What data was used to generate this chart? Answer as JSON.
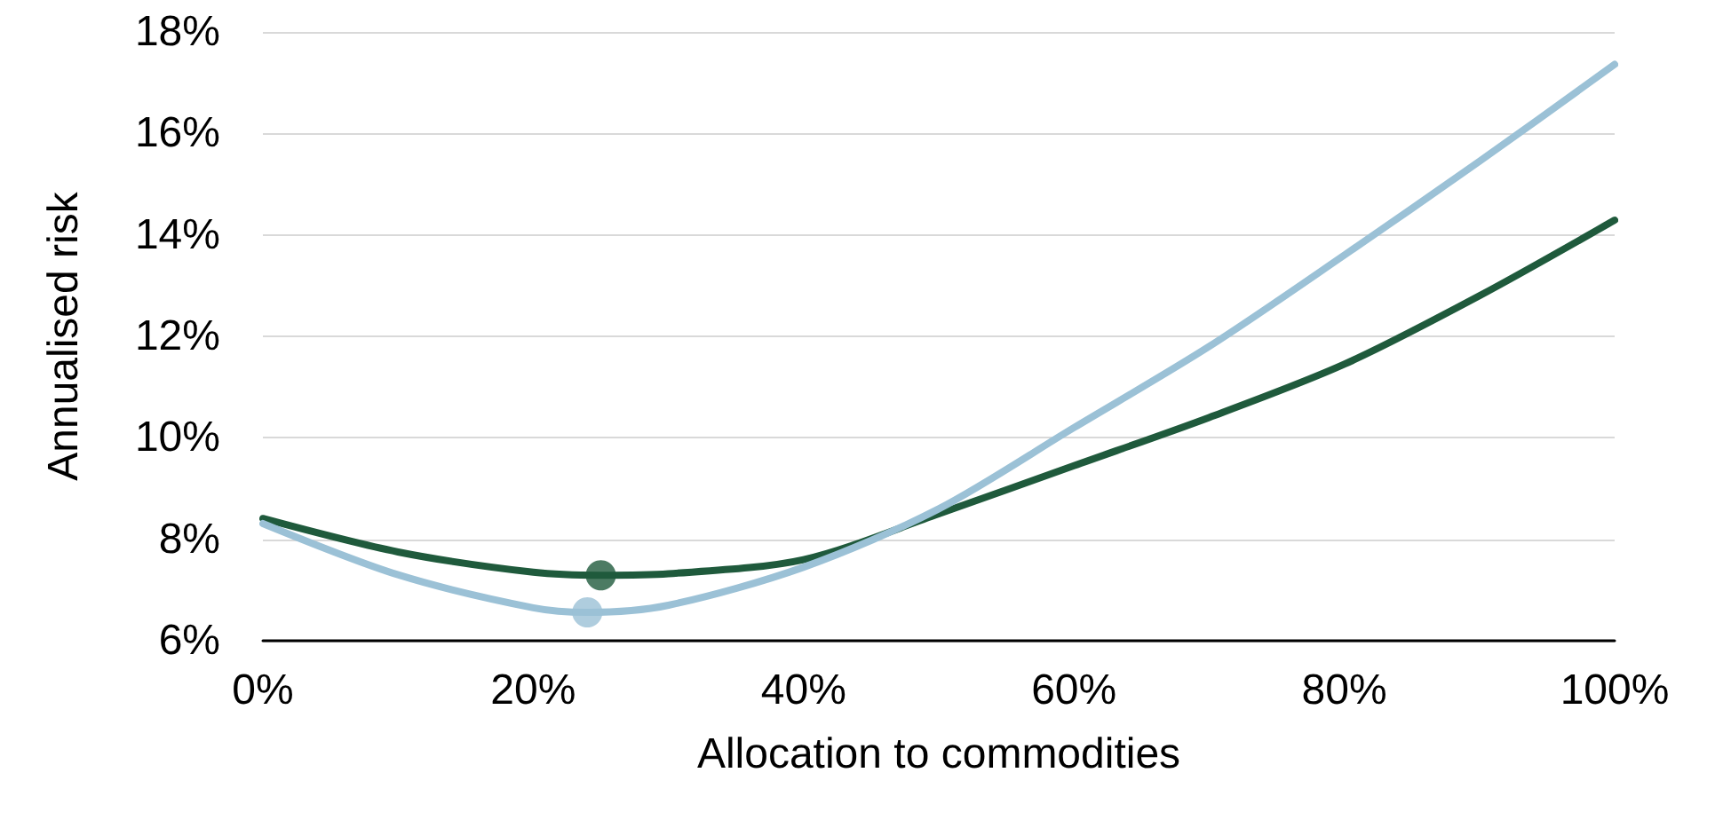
{
  "chart_data": {
    "type": "line",
    "xlabel": "Allocation to commodities",
    "ylabel": "Annualised risk",
    "xlim": [
      0,
      100
    ],
    "xticks": [
      {
        "value": 0,
        "label": "0%"
      },
      {
        "value": 20,
        "label": "20%"
      },
      {
        "value": 40,
        "label": "40%"
      },
      {
        "value": 60,
        "label": "60%"
      },
      {
        "value": 80,
        "label": "80%"
      },
      {
        "value": 100,
        "label": "100%"
      }
    ],
    "ylim": [
      6,
      18
    ],
    "yticks": [
      {
        "value": 6,
        "label": "6%"
      },
      {
        "value": 8,
        "label": "8%"
      },
      {
        "value": 10,
        "label": "10%"
      },
      {
        "value": 12,
        "label": "12%"
      },
      {
        "value": 14,
        "label": "14%"
      },
      {
        "value": 16,
        "label": "16%"
      },
      {
        "value": 18,
        "label": "18%"
      }
    ],
    "grid": "y",
    "marker": "none",
    "line_style": "solid",
    "series": [
      {
        "color": "#1f5a3c",
        "x": [
          0,
          10,
          20,
          25,
          30,
          40,
          50,
          60,
          70,
          80,
          90,
          100
        ],
        "values": [
          8.41,
          7.75,
          7.35,
          7.29,
          7.32,
          7.6,
          8.5,
          9.45,
          10.4,
          11.45,
          12.8,
          14.29
        ]
      },
      {
        "color": "#9bc1d6",
        "x": [
          0,
          10,
          20,
          24,
          30,
          40,
          50,
          60,
          70,
          80,
          90,
          100
        ],
        "values": [
          8.31,
          7.3,
          6.65,
          6.56,
          6.7,
          7.45,
          8.6,
          10.2,
          11.8,
          13.6,
          15.45,
          17.36
        ]
      },
      {
        "type": "scatter",
        "marker": "circle",
        "color": "#1f5a3c",
        "x": [
          25
        ],
        "values": [
          7.29
        ]
      },
      {
        "type": "scatter",
        "marker": "circle",
        "color": "#9bc1d6",
        "x": [
          24
        ],
        "values": [
          6.56
        ]
      }
    ]
  }
}
